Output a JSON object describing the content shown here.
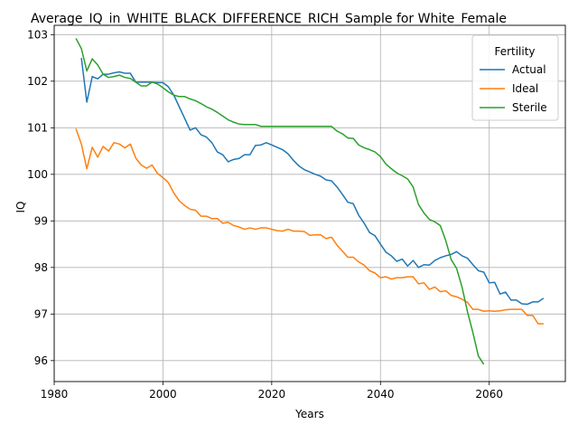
{
  "chart_data": {
    "type": "line",
    "title": "Average_IQ_in_WHITE_BLACK_DIFFERENCE_RICH_Sample for White_Female",
    "xlabel": "Years",
    "ylabel": "IQ",
    "xlim": [
      1980,
      2074
    ],
    "ylim": [
      95.55,
      103.2
    ],
    "xticks": [
      1980,
      2000,
      2020,
      2040,
      2060
    ],
    "yticks": [
      96,
      97,
      98,
      99,
      100,
      101,
      102,
      103
    ],
    "grid": true,
    "legend": {
      "title": "Fertility",
      "placement": "top-right"
    },
    "series": [
      {
        "name": "Actual",
        "color": "#1f77b4",
        "points": [
          [
            1985,
            102.5
          ],
          [
            1986,
            101.55
          ],
          [
            1987,
            102.1
          ],
          [
            1988,
            102.05
          ],
          [
            1989,
            102.15
          ],
          [
            1990,
            102.15
          ],
          [
            1991,
            102.18
          ],
          [
            1992,
            102.2
          ],
          [
            1993,
            102.17
          ],
          [
            1994,
            102.17
          ],
          [
            1995,
            101.98
          ],
          [
            1996,
            101.98
          ],
          [
            1997,
            101.98
          ],
          [
            1998,
            101.98
          ],
          [
            1999,
            101.97
          ],
          [
            2000,
            101.97
          ],
          [
            2001,
            101.88
          ],
          [
            2002,
            101.7
          ],
          [
            2003,
            101.45
          ],
          [
            2004,
            101.2
          ],
          [
            2005,
            100.95
          ],
          [
            2006,
            101.0
          ],
          [
            2007,
            100.85
          ],
          [
            2008,
            100.8
          ],
          [
            2009,
            100.68
          ],
          [
            2010,
            100.48
          ],
          [
            2011,
            100.42
          ],
          [
            2012,
            100.27
          ],
          [
            2013,
            100.32
          ],
          [
            2014,
            100.34
          ],
          [
            2015,
            100.42
          ],
          [
            2016,
            100.42
          ],
          [
            2017,
            100.62
          ],
          [
            2018,
            100.63
          ],
          [
            2019,
            100.68
          ],
          [
            2020,
            100.63
          ],
          [
            2021,
            100.58
          ],
          [
            2022,
            100.53
          ],
          [
            2023,
            100.44
          ],
          [
            2024,
            100.3
          ],
          [
            2025,
            100.18
          ],
          [
            2026,
            100.1
          ],
          [
            2027,
            100.05
          ],
          [
            2028,
            100.0
          ],
          [
            2029,
            99.96
          ],
          [
            2030,
            99.88
          ],
          [
            2031,
            99.86
          ],
          [
            2032,
            99.73
          ],
          [
            2033,
            99.57
          ],
          [
            2034,
            99.4
          ],
          [
            2035,
            99.37
          ],
          [
            2036,
            99.12
          ],
          [
            2037,
            98.95
          ],
          [
            2038,
            98.75
          ],
          [
            2039,
            98.68
          ],
          [
            2040,
            98.5
          ],
          [
            2041,
            98.33
          ],
          [
            2042,
            98.25
          ],
          [
            2043,
            98.13
          ],
          [
            2044,
            98.18
          ],
          [
            2045,
            98.03
          ],
          [
            2046,
            98.15
          ],
          [
            2047,
            98.0
          ],
          [
            2048,
            98.06
          ],
          [
            2049,
            98.05
          ],
          [
            2050,
            98.15
          ],
          [
            2051,
            98.21
          ],
          [
            2052,
            98.25
          ],
          [
            2053,
            98.28
          ],
          [
            2054,
            98.34
          ],
          [
            2055,
            98.25
          ],
          [
            2056,
            98.2
          ],
          [
            2057,
            98.06
          ],
          [
            2058,
            97.93
          ],
          [
            2059,
            97.9
          ],
          [
            2060,
            97.67
          ],
          [
            2061,
            97.68
          ],
          [
            2062,
            97.43
          ],
          [
            2063,
            97.47
          ],
          [
            2064,
            97.3
          ],
          [
            2065,
            97.3
          ],
          [
            2066,
            97.22
          ],
          [
            2067,
            97.21
          ],
          [
            2068,
            97.26
          ],
          [
            2069,
            97.26
          ],
          [
            2070,
            97.34
          ]
        ]
      },
      {
        "name": "Ideal",
        "color": "#ff7f0e",
        "points": [
          [
            1984,
            100.98
          ],
          [
            1985,
            100.65
          ],
          [
            1986,
            100.12
          ],
          [
            1987,
            100.58
          ],
          [
            1988,
            100.37
          ],
          [
            1989,
            100.6
          ],
          [
            1990,
            100.5
          ],
          [
            1991,
            100.68
          ],
          [
            1992,
            100.65
          ],
          [
            1993,
            100.57
          ],
          [
            1994,
            100.65
          ],
          [
            1995,
            100.35
          ],
          [
            1996,
            100.2
          ],
          [
            1997,
            100.13
          ],
          [
            1998,
            100.2
          ],
          [
            1999,
            100.02
          ],
          [
            2000,
            99.93
          ],
          [
            2001,
            99.82
          ],
          [
            2002,
            99.6
          ],
          [
            2003,
            99.43
          ],
          [
            2004,
            99.33
          ],
          [
            2005,
            99.25
          ],
          [
            2006,
            99.23
          ],
          [
            2007,
            99.1
          ],
          [
            2008,
            99.1
          ],
          [
            2009,
            99.05
          ],
          [
            2010,
            99.05
          ],
          [
            2011,
            98.95
          ],
          [
            2012,
            98.97
          ],
          [
            2013,
            98.9
          ],
          [
            2014,
            98.87
          ],
          [
            2015,
            98.82
          ],
          [
            2016,
            98.85
          ],
          [
            2017,
            98.82
          ],
          [
            2018,
            98.85
          ],
          [
            2019,
            98.85
          ],
          [
            2020,
            98.82
          ],
          [
            2021,
            98.79
          ],
          [
            2022,
            98.78
          ],
          [
            2023,
            98.82
          ],
          [
            2024,
            98.78
          ],
          [
            2025,
            98.78
          ],
          [
            2026,
            98.77
          ],
          [
            2027,
            98.69
          ],
          [
            2028,
            98.7
          ],
          [
            2029,
            98.7
          ],
          [
            2030,
            98.62
          ],
          [
            2031,
            98.65
          ],
          [
            2032,
            98.48
          ],
          [
            2033,
            98.35
          ],
          [
            2034,
            98.22
          ],
          [
            2035,
            98.22
          ],
          [
            2036,
            98.12
          ],
          [
            2037,
            98.05
          ],
          [
            2038,
            97.93
          ],
          [
            2039,
            97.88
          ],
          [
            2040,
            97.78
          ],
          [
            2041,
            97.8
          ],
          [
            2042,
            97.75
          ],
          [
            2043,
            97.78
          ],
          [
            2044,
            97.78
          ],
          [
            2045,
            97.8
          ],
          [
            2046,
            97.8
          ],
          [
            2047,
            97.65
          ],
          [
            2048,
            97.67
          ],
          [
            2049,
            97.53
          ],
          [
            2050,
            97.58
          ],
          [
            2051,
            97.48
          ],
          [
            2052,
            97.5
          ],
          [
            2053,
            97.4
          ],
          [
            2054,
            97.37
          ],
          [
            2055,
            97.32
          ],
          [
            2056,
            97.25
          ],
          [
            2057,
            97.1
          ],
          [
            2058,
            97.1
          ],
          [
            2059,
            97.06
          ],
          [
            2060,
            97.07
          ],
          [
            2061,
            97.06
          ],
          [
            2062,
            97.07
          ],
          [
            2063,
            97.09
          ],
          [
            2064,
            97.1
          ],
          [
            2065,
            97.1
          ],
          [
            2066,
            97.1
          ],
          [
            2067,
            96.97
          ],
          [
            2068,
            96.97
          ],
          [
            2069,
            96.79
          ],
          [
            2070,
            96.79
          ]
        ]
      },
      {
        "name": "Sterile",
        "color": "#2ca02c",
        "points": [
          [
            1984,
            102.92
          ],
          [
            1985,
            102.7
          ],
          [
            1986,
            102.22
          ],
          [
            1987,
            102.48
          ],
          [
            1988,
            102.35
          ],
          [
            1989,
            102.15
          ],
          [
            1990,
            102.08
          ],
          [
            1991,
            102.1
          ],
          [
            1992,
            102.13
          ],
          [
            1993,
            102.08
          ],
          [
            1994,
            102.06
          ],
          [
            1995,
            101.98
          ],
          [
            1996,
            101.9
          ],
          [
            1997,
            101.9
          ],
          [
            1998,
            101.98
          ],
          [
            1999,
            101.94
          ],
          [
            2000,
            101.86
          ],
          [
            2001,
            101.77
          ],
          [
            2002,
            101.7
          ],
          [
            2003,
            101.67
          ],
          [
            2004,
            101.67
          ],
          [
            2005,
            101.62
          ],
          [
            2006,
            101.58
          ],
          [
            2007,
            101.52
          ],
          [
            2008,
            101.45
          ],
          [
            2009,
            101.4
          ],
          [
            2010,
            101.33
          ],
          [
            2011,
            101.25
          ],
          [
            2012,
            101.17
          ],
          [
            2013,
            101.12
          ],
          [
            2014,
            101.08
          ],
          [
            2015,
            101.07
          ],
          [
            2016,
            101.07
          ],
          [
            2017,
            101.07
          ],
          [
            2018,
            101.03
          ],
          [
            2019,
            101.03
          ],
          [
            2020,
            101.03
          ],
          [
            2021,
            101.03
          ],
          [
            2022,
            101.03
          ],
          [
            2023,
            101.03
          ],
          [
            2024,
            101.03
          ],
          [
            2025,
            101.03
          ],
          [
            2026,
            101.03
          ],
          [
            2027,
            101.03
          ],
          [
            2028,
            101.03
          ],
          [
            2029,
            101.03
          ],
          [
            2030,
            101.03
          ],
          [
            2031,
            101.03
          ],
          [
            2032,
            100.93
          ],
          [
            2033,
            100.87
          ],
          [
            2034,
            100.78
          ],
          [
            2035,
            100.77
          ],
          [
            2036,
            100.63
          ],
          [
            2037,
            100.57
          ],
          [
            2038,
            100.53
          ],
          [
            2039,
            100.48
          ],
          [
            2040,
            100.38
          ],
          [
            2041,
            100.22
          ],
          [
            2042,
            100.12
          ],
          [
            2043,
            100.03
          ],
          [
            2044,
            99.97
          ],
          [
            2045,
            99.9
          ],
          [
            2046,
            99.73
          ],
          [
            2047,
            99.35
          ],
          [
            2048,
            99.17
          ],
          [
            2049,
            99.03
          ],
          [
            2050,
            98.98
          ],
          [
            2051,
            98.9
          ],
          [
            2052,
            98.58
          ],
          [
            2053,
            98.17
          ],
          [
            2054,
            97.98
          ],
          [
            2055,
            97.58
          ],
          [
            2056,
            97.05
          ],
          [
            2057,
            96.6
          ],
          [
            2058,
            96.1
          ],
          [
            2059,
            95.92
          ]
        ]
      }
    ]
  }
}
